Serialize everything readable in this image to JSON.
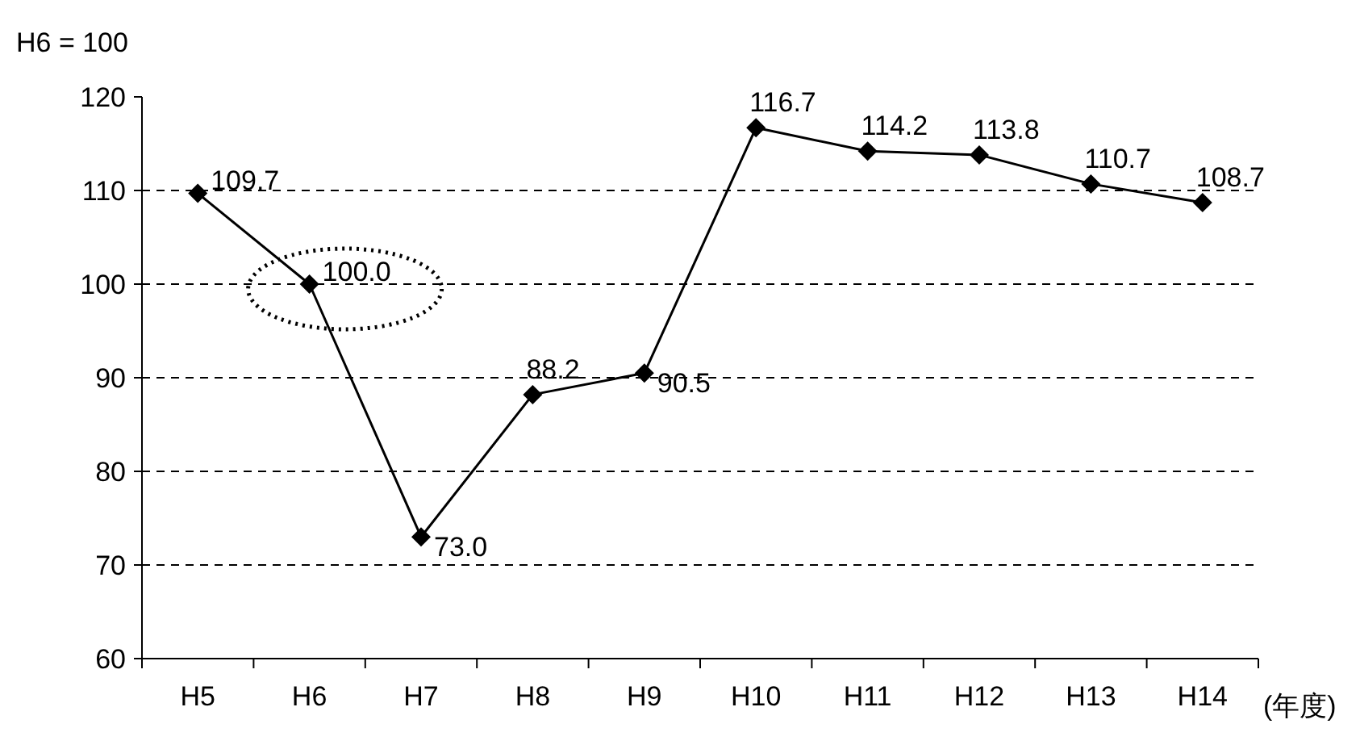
{
  "chart_data": {
    "type": "line",
    "ylabel": "H6 = 100",
    "xlabel": "(年度)",
    "categories": [
      "H5",
      "H6",
      "H7",
      "H8",
      "H9",
      "H10",
      "H11",
      "H12",
      "H13",
      "H14"
    ],
    "values": [
      109.7,
      100.0,
      73.0,
      88.2,
      90.5,
      116.7,
      114.2,
      113.8,
      110.7,
      108.7
    ],
    "color": "#000000",
    "ylim": [
      60,
      120
    ],
    "yticks": [
      60,
      70,
      80,
      90,
      100,
      110,
      120
    ],
    "value_labels": [
      "109.7",
      "100.0",
      "73.0",
      "88.2",
      "90.5",
      "116.7",
      "114.2",
      "113.8",
      "110.7",
      "108.7"
    ],
    "grid": "y",
    "marker": "diamond",
    "line_style": "solid"
  }
}
